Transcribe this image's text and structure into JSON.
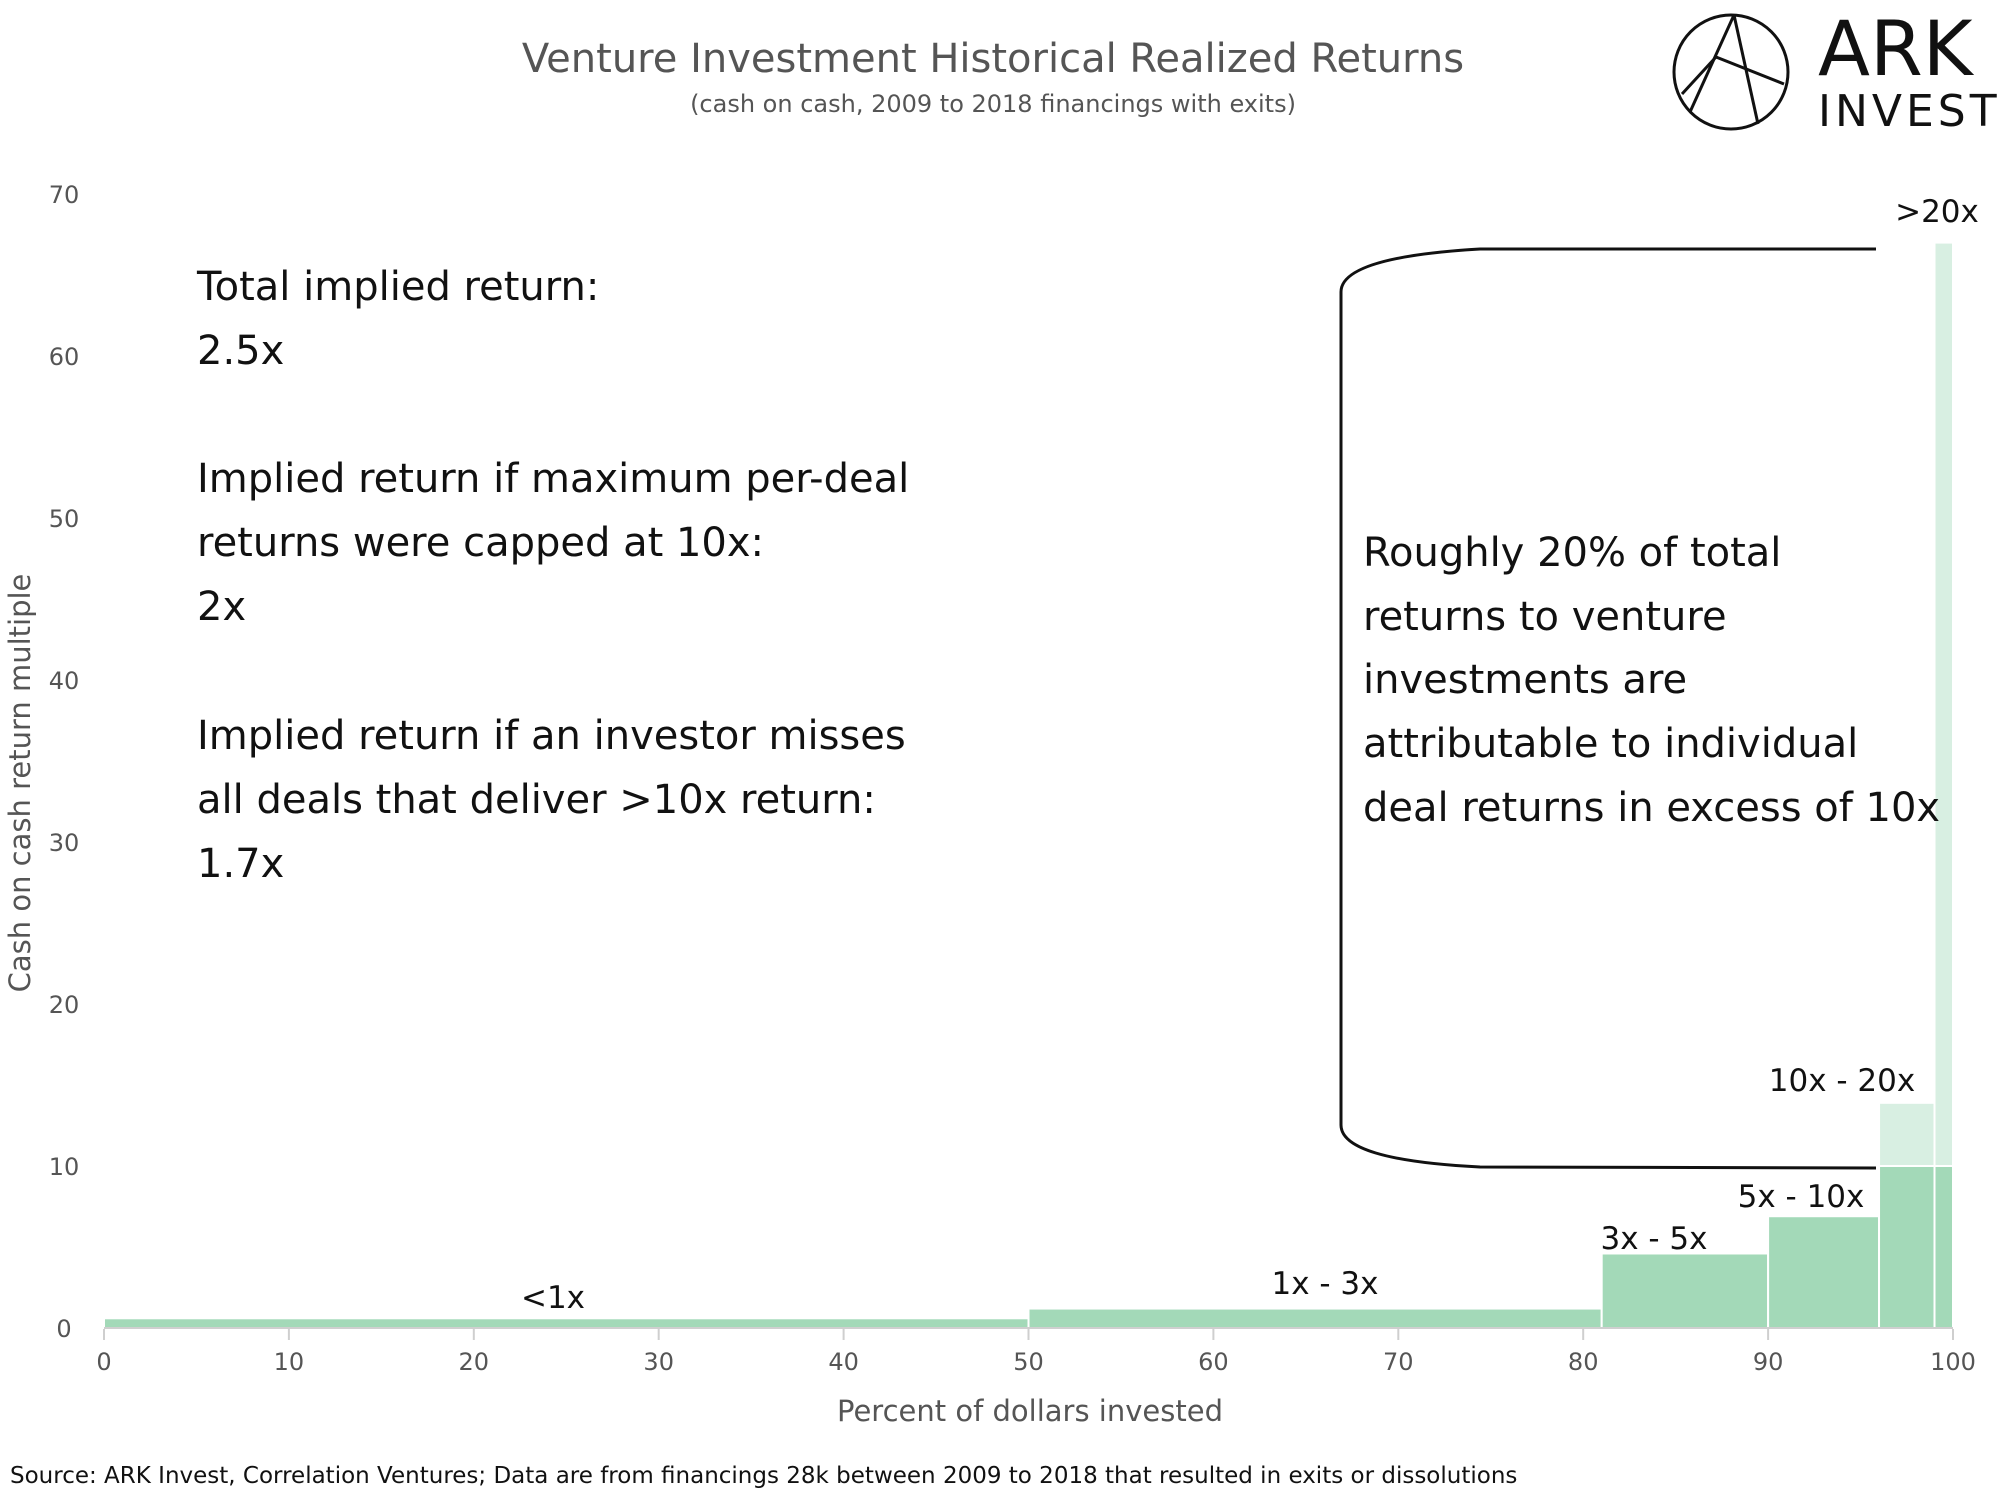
{
  "title": "Venture Investment Historical Realized Returns",
  "subtitle": "(cash on cash, 2009 to 2018 financings with exits)",
  "logo": {
    "line1": "ARK",
    "line2": "INVEST"
  },
  "source": "Source: ARK Invest, Correlation Ventures; Data are from financings 28k between 2009 to 2018 that resulted in exits or dissolutions",
  "notes_left": [
    "Total implied return:",
    "2.5x",
    "Implied return if maximum per-deal",
    "returns were capped at 10x:",
    "2x",
    "Implied return if an investor misses",
    "all deals that deliver >10x return:",
    "1.7x"
  ],
  "notes_right": [
    "Roughly 20% of total",
    "returns to venture",
    "investments are",
    "attributable to individual",
    "deal returns in excess of 10x"
  ],
  "colors": {
    "bar": "#a3d9b8",
    "bar_light": "#d8efe2",
    "axis_text": "#555555"
  },
  "chart_data": {
    "type": "bar",
    "xlabel": "Percent of dollars invested",
    "ylabel": "Cash on cash return multiple",
    "xlim": [
      0,
      100
    ],
    "ylim": [
      0,
      70
    ],
    "xticks": [
      0,
      10,
      20,
      30,
      40,
      50,
      60,
      70,
      80,
      90,
      100
    ],
    "yticks": [
      0,
      10,
      20,
      30,
      40,
      50,
      60,
      70
    ],
    "bars": [
      {
        "label": "<1x",
        "x_start": 0,
        "x_end": 50,
        "value": 0.6
      },
      {
        "label": "1x - 3x",
        "x_start": 50,
        "x_end": 81,
        "value": 1.2
      },
      {
        "label": "3x - 5x",
        "x_start": 81,
        "x_end": 90,
        "value": 4.6
      },
      {
        "label": "5x - 10x",
        "x_start": 90,
        "x_end": 96,
        "value": 6.9
      },
      {
        "label": "10x - 20x",
        "x_start": 96,
        "x_end": 99,
        "value": 13.9,
        "capped_at": 10
      },
      {
        "label": ">20x",
        "x_start": 99,
        "x_end": 100,
        "value": 67,
        "capped_at": 10
      }
    ],
    "cap_line": 10
  }
}
